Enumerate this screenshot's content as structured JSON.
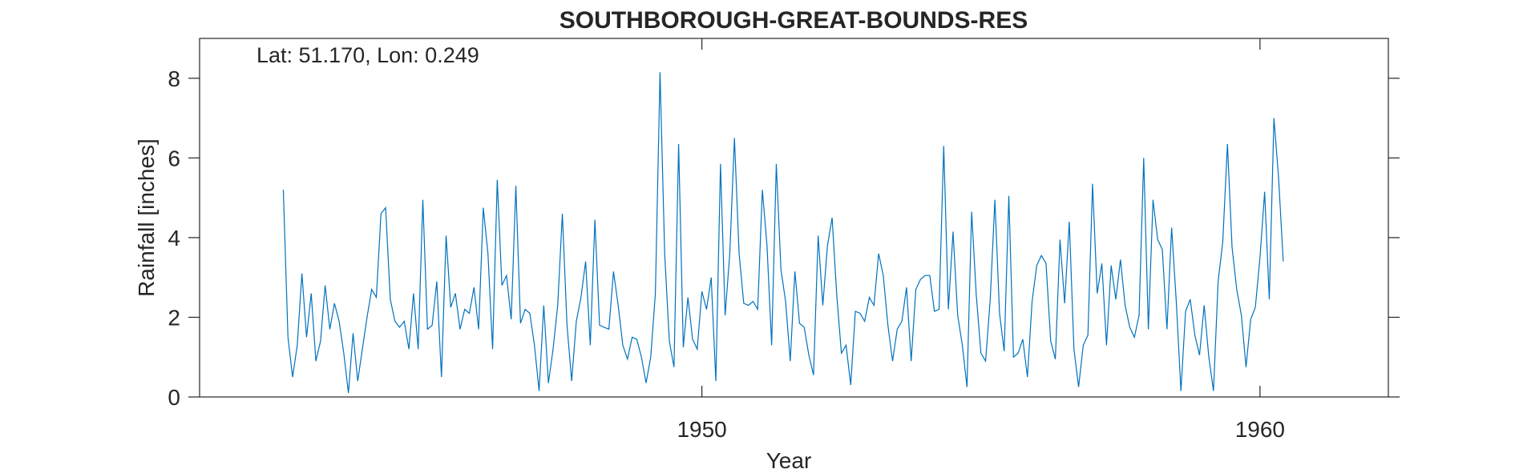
{
  "chart_data": {
    "type": "line",
    "title": "SOUTHBOROUGH-GREAT-BOUNDS-RES",
    "annotation": "Lat: 51.170, Lon: 0.249",
    "xlabel": "Year",
    "ylabel": "Rainfall [inches]",
    "xlim": [
      1941.0,
      1962.3
    ],
    "ylim": [
      0,
      9
    ],
    "xticks": [
      1950,
      1960
    ],
    "xtick_labels": [
      "1950",
      "1960"
    ],
    "yticks": [
      0,
      2,
      4,
      6,
      8
    ],
    "ytick_labels": [
      "0",
      "2",
      "4",
      "6",
      "8"
    ],
    "grid": false,
    "line_color": "#0072bd",
    "x_start": 1942.5,
    "x_step": 0.08333333,
    "series": [
      {
        "values": [
          5.2,
          1.5,
          0.5,
          1.3,
          3.1,
          1.5,
          2.6,
          0.9,
          1.4,
          2.8,
          1.7,
          2.35,
          1.9,
          1.1,
          0.1,
          1.6,
          0.4,
          1.2,
          2.0,
          2.7,
          2.5,
          4.6,
          4.75,
          2.45,
          1.9,
          1.75,
          1.9,
          1.2,
          2.6,
          1.2,
          4.95,
          1.7,
          1.8,
          2.9,
          0.5,
          4.05,
          2.25,
          2.6,
          1.7,
          2.2,
          2.1,
          2.75,
          1.7,
          4.75,
          3.6,
          1.2,
          5.45,
          2.8,
          3.05,
          1.95,
          5.3,
          1.85,
          2.2,
          2.1,
          1.3,
          0.15,
          2.3,
          0.35,
          1.2,
          2.3,
          4.6,
          1.8,
          0.4,
          1.9,
          2.5,
          3.4,
          1.3,
          4.45,
          1.8,
          1.75,
          1.7,
          3.15,
          2.3,
          1.3,
          0.95,
          1.5,
          1.45,
          1.0,
          0.35,
          1.0,
          2.6,
          8.15,
          3.6,
          1.4,
          0.75,
          6.35,
          1.25,
          2.5,
          1.45,
          1.2,
          2.65,
          2.2,
          3.0,
          0.4,
          5.85,
          2.05,
          3.6,
          6.5,
          3.6,
          2.35,
          2.3,
          2.4,
          2.2,
          5.2,
          3.8,
          1.3,
          5.85,
          3.2,
          2.4,
          0.9,
          3.15,
          1.85,
          1.75,
          1.05,
          0.55,
          4.05,
          2.3,
          3.8,
          4.5,
          2.55,
          1.1,
          1.3,
          0.3,
          2.15,
          2.1,
          1.9,
          2.5,
          2.3,
          3.6,
          3.05,
          1.8,
          0.9,
          1.7,
          1.9,
          2.75,
          0.9,
          2.7,
          2.95,
          3.05,
          3.05,
          2.15,
          2.2,
          6.3,
          2.2,
          4.15,
          2.05,
          1.3,
          0.25,
          4.65,
          2.55,
          1.1,
          0.9,
          2.45,
          4.95,
          2.1,
          1.15,
          5.05,
          1.0,
          1.1,
          1.45,
          0.5,
          2.4,
          3.3,
          3.55,
          3.35,
          1.4,
          0.95,
          3.95,
          2.35,
          4.4,
          1.2,
          0.25,
          1.3,
          1.55,
          5.35,
          2.6,
          3.35,
          1.3,
          3.3,
          2.45,
          3.45,
          2.3,
          1.75,
          1.5,
          2.05,
          6.0,
          1.7,
          4.95,
          3.95,
          3.7,
          1.7,
          4.25,
          2.4,
          0.15,
          2.15,
          2.45,
          1.55,
          1.05,
          2.3,
          1.0,
          0.15,
          2.9,
          3.9,
          6.35,
          3.75,
          2.7,
          2.05,
          0.75,
          1.95,
          2.25,
          3.5,
          5.15,
          2.45,
          7.0,
          5.5,
          3.4
        ]
      }
    ]
  }
}
